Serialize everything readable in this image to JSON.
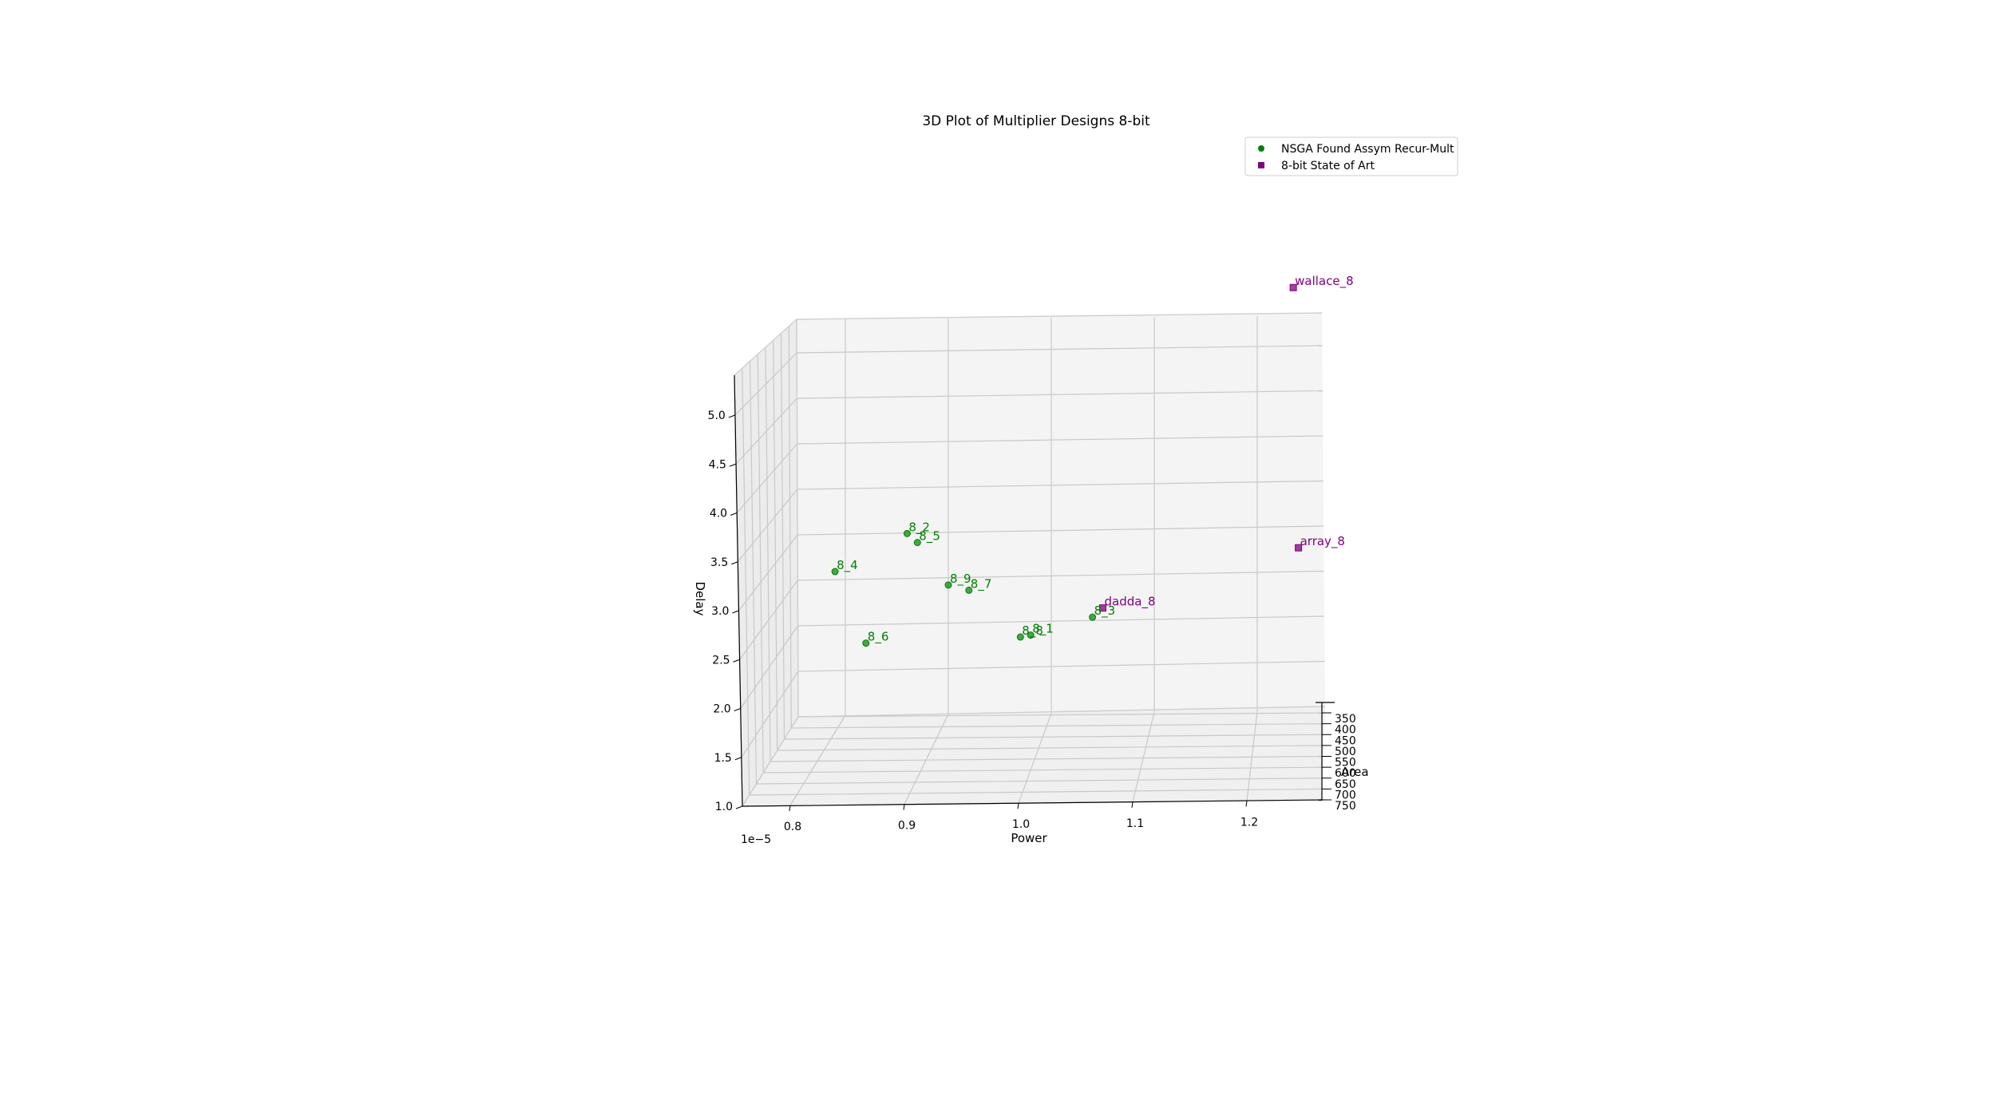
{
  "chart_data": {
    "type": "scatter",
    "projection": "3d",
    "title": "3D Plot of Multiplier Designs 8-bit",
    "xlabel": "Power",
    "ylabel": "Area",
    "zlabel": "Delay",
    "x_offset_label": "1e−5",
    "x_ticks": [
      "0.8",
      "0.9",
      "1.0",
      "1.1",
      "1.2"
    ],
    "y_ticks": [
      "350",
      "400",
      "450",
      "500",
      "550",
      "600",
      "650",
      "700",
      "750"
    ],
    "z_ticks": [
      "1.0",
      "1.5",
      "2.0",
      "2.5",
      "3.0",
      "3.5",
      "4.0",
      "4.5",
      "5.0"
    ],
    "legend_position": "top-right",
    "grid": true,
    "series": [
      {
        "name": "NSGA Found Assym Recur-Mult",
        "color": "#008000",
        "marker": "circle",
        "points": [
          {
            "label": "8_1",
            "power": 0.98,
            "area": 360,
            "delay": 1.86
          },
          {
            "label": "8_2",
            "power": 0.86,
            "area": 360,
            "delay": 2.99
          },
          {
            "label": "8_3",
            "power": 1.04,
            "area": 360,
            "delay": 2.05
          },
          {
            "label": "8_4",
            "power": 0.79,
            "area": 360,
            "delay": 2.58
          },
          {
            "label": "8_5",
            "power": 0.87,
            "area": 360,
            "delay": 2.89
          },
          {
            "label": "8_6",
            "power": 0.82,
            "area": 360,
            "delay": 1.79
          },
          {
            "label": "8_7",
            "power": 0.92,
            "area": 360,
            "delay": 2.36
          },
          {
            "label": "8_8",
            "power": 0.97,
            "area": 360,
            "delay": 1.84
          },
          {
            "label": "8_9",
            "power": 0.9,
            "area": 360,
            "delay": 2.42
          }
        ]
      },
      {
        "name": "8-bit State of Art",
        "color": "#800080",
        "marker": "square",
        "points": [
          {
            "label": "wallace_8",
            "power": 1.235,
            "area": 360,
            "delay": 5.65
          },
          {
            "label": "array_8",
            "power": 1.24,
            "area": 360,
            "delay": 2.79
          },
          {
            "label": "dadda_8",
            "power": 1.05,
            "area": 360,
            "delay": 2.15
          }
        ]
      }
    ]
  }
}
